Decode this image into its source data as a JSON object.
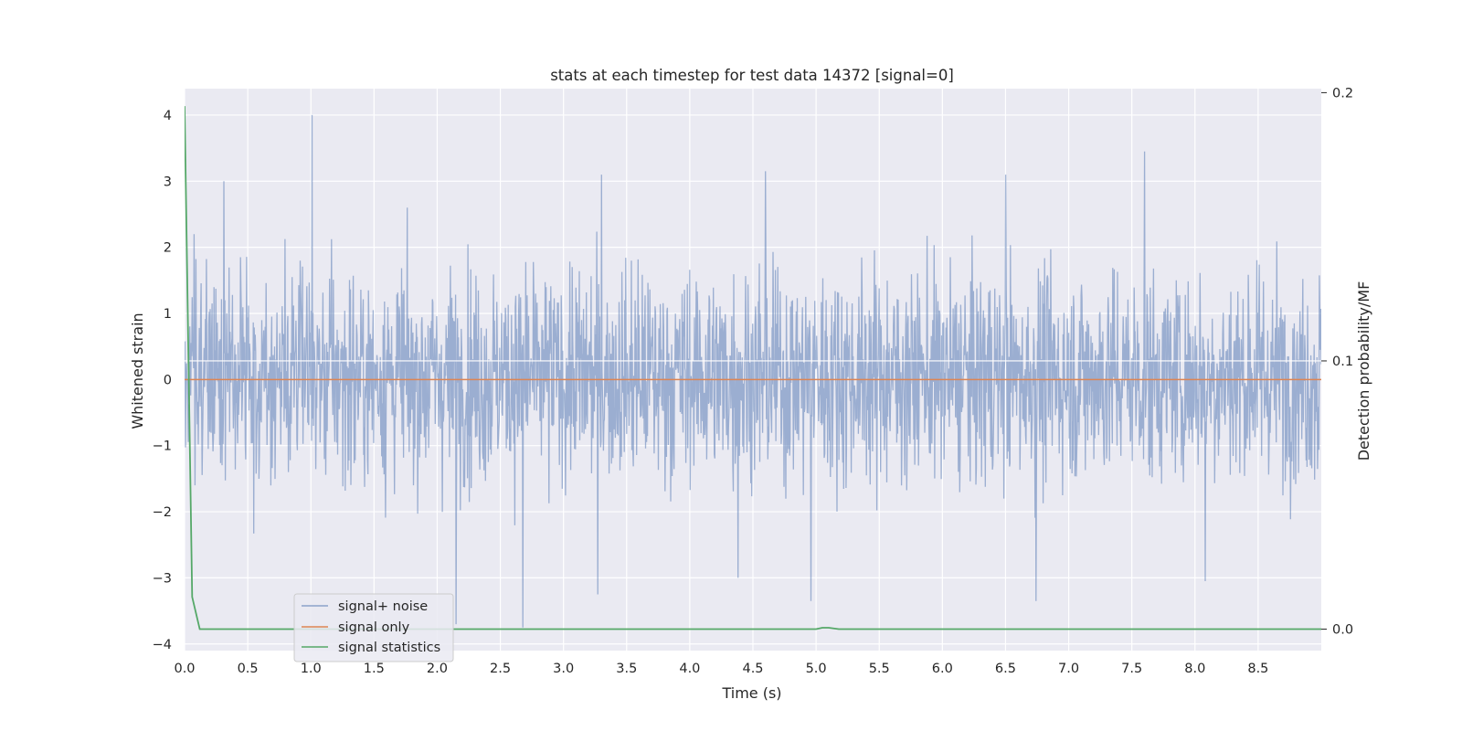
{
  "chart_data": {
    "type": "line",
    "title": "stats at each timestep for test data 14372 [signal=0]",
    "xlabel": "Time (s)",
    "ylabel": "Whitened strain",
    "y2label": "Detection probability/MF",
    "xlim": [
      0.0,
      9.0
    ],
    "ylim": [
      -4.1,
      4.4
    ],
    "y2lim": [
      -0.008,
      0.2015
    ],
    "x_ticks": [
      "0.0",
      "0.5",
      "1.0",
      "1.5",
      "2.0",
      "2.5",
      "3.0",
      "3.5",
      "4.0",
      "4.5",
      "5.0",
      "5.5",
      "6.0",
      "6.5",
      "7.0",
      "7.5",
      "8.0",
      "8.5"
    ],
    "y_ticks": [
      "4",
      "3",
      "2",
      "1",
      "0",
      "−1",
      "−2",
      "−3",
      "−4"
    ],
    "y2_ticks": [
      "0.2",
      "0.1",
      "0.0"
    ],
    "grid": true,
    "legend_position": "lower-left",
    "colors": {
      "background": "#eaeaf2",
      "grid": "#ffffff",
      "noise": "#4c72b0",
      "signal": "#dd8452",
      "statistics": "#55a868"
    },
    "series": [
      {
        "name": "signal+ noise",
        "axis": "left",
        "style": "dense-noise",
        "x_range": [
          0.0,
          9.0
        ],
        "typical_band": [
          -1.3,
          1.4
        ],
        "spikes": [
          {
            "x": 1.01,
            "y": 4.0
          },
          {
            "x": 7.6,
            "y": 3.45
          },
          {
            "x": 4.6,
            "y": 3.15
          },
          {
            "x": 6.5,
            "y": 3.1
          },
          {
            "x": 3.3,
            "y": 3.1
          },
          {
            "x": 0.31,
            "y": 3.0
          },
          {
            "x": 2.68,
            "y": -3.75
          },
          {
            "x": 2.15,
            "y": -3.7
          },
          {
            "x": 4.96,
            "y": -3.35
          },
          {
            "x": 6.74,
            "y": -3.35
          },
          {
            "x": 3.27,
            "y": -3.25
          },
          {
            "x": 8.08,
            "y": -3.05
          },
          {
            "x": 4.38,
            "y": -3.0
          }
        ]
      },
      {
        "name": "signal only",
        "axis": "left",
        "x": [
          0.0,
          9.0
        ],
        "y": [
          0.0,
          0.0
        ]
      },
      {
        "name": "signal statistics",
        "axis": "right",
        "x": [
          0.0,
          0.06,
          0.12,
          0.2,
          1.0,
          2.0,
          3.0,
          4.0,
          5.0,
          5.05,
          5.1,
          5.18,
          6.0,
          7.0,
          8.0,
          9.0
        ],
        "y": [
          0.195,
          0.012,
          0.0,
          0.0,
          0.0,
          0.0,
          0.0,
          0.0,
          0.0,
          0.0005,
          0.0005,
          0.0,
          0.0,
          0.0,
          0.0,
          0.0
        ]
      }
    ],
    "hline_right": 0.1
  }
}
